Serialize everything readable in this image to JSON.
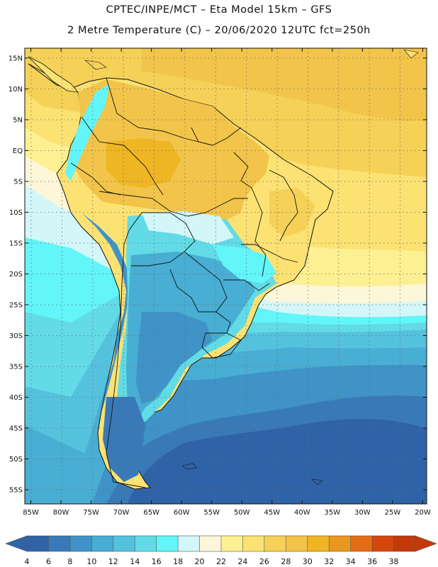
{
  "header": {
    "line1": "CPTEC/INPE/MCT –  Eta Model 15km – GFS",
    "line2": "2 Metre Temperature (C) – 20/06/2020 12UTC fct=250h"
  },
  "axes": {
    "lat_labels": [
      "15N",
      "10N",
      "5N",
      "EQ",
      "5S",
      "10S",
      "15S",
      "20S",
      "25S",
      "30S",
      "35S",
      "40S",
      "45S",
      "50S",
      "55S"
    ],
    "lon_labels": [
      "85W",
      "80W",
      "75W",
      "70W",
      "65W",
      "60W",
      "55W",
      "50W",
      "45W",
      "40W",
      "35W",
      "30W",
      "25W",
      "20W"
    ],
    "lat_values": [
      15,
      10,
      5,
      0,
      -5,
      -10,
      -15,
      -20,
      -25,
      -30,
      -35,
      -40,
      -45,
      -50,
      -55
    ],
    "lon_values": [
      -85,
      -80,
      -75,
      -70,
      -65,
      -60,
      -55,
      -50,
      -45,
      -40,
      -35,
      -30,
      -25,
      -20
    ]
  },
  "colorbar": {
    "labels": [
      "4",
      "6",
      "8",
      "10",
      "12",
      "14",
      "16",
      "18",
      "20",
      "22",
      "24",
      "26",
      "28",
      "30",
      "32",
      "34",
      "36",
      "38"
    ],
    "colors": [
      "#2f63a8",
      "#3a79b7",
      "#3f93c6",
      "#48aed3",
      "#55c2dd",
      "#62dbe7",
      "#62f5f9",
      "#d3f6f9",
      "#fdf6d8",
      "#fdf092",
      "#fbe273",
      "#f6d157",
      "#f2c44a",
      "#efb624",
      "#ea9720",
      "#e46d14",
      "#d4460c",
      "#c23a0a"
    ]
  },
  "chart_data": {
    "type": "heatmap",
    "title": "2 Metre Temperature (C) – 20/06/2020 12UTC fct=250h",
    "model": "Eta Model 15km – GFS",
    "variable": "2 Metre Temperature",
    "units": "C",
    "x_range": [
      -85,
      -20
    ],
    "y_range": [
      -57,
      16
    ],
    "scale_range": [
      4,
      38
    ],
    "scale_step": 2
  }
}
